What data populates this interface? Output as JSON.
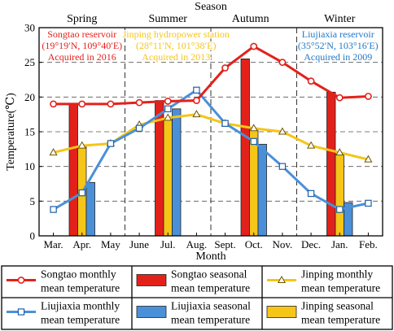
{
  "chart_data": {
    "type": "bar+line",
    "top_axis_label": "Season",
    "seasons": [
      "Spring",
      "Summer",
      "Autumn",
      "Winter"
    ],
    "xlabel": "Month",
    "ylabel": "Temperature(℃)",
    "ylim": [
      0,
      30
    ],
    "yticks": [
      0,
      5,
      10,
      15,
      20,
      25,
      30
    ],
    "categories": [
      "Mar.",
      "Apr.",
      "May",
      "June",
      "Jul.",
      "Aug.",
      "Sept.",
      "Oct.",
      "Nov.",
      "Dec.",
      "Jan.",
      "Feb."
    ],
    "line_series": [
      {
        "name": "Songtao monthly mean temperature",
        "color": "#e3211b",
        "marker": "circle",
        "values": [
          19.0,
          19.0,
          19.0,
          19.2,
          19.4,
          19.5,
          24.2,
          27.3,
          25.0,
          22.3,
          19.9,
          20.1
        ]
      },
      {
        "name": "Jinping monthly mean temperature",
        "color": "#f5c518",
        "marker": "triangle",
        "values": [
          12.0,
          13.0,
          13.3,
          16.0,
          17.0,
          17.5,
          16.2,
          15.5,
          15.0,
          13.0,
          12.0,
          11.0
        ]
      },
      {
        "name": "Liujiaxia monthly mean temperature",
        "color": "#4a90d9",
        "marker": "square",
        "values": [
          3.8,
          6.2,
          13.3,
          15.5,
          18.3,
          21.0,
          16.2,
          13.6,
          10.0,
          6.1,
          3.8,
          4.7
        ]
      }
    ],
    "bar_series": [
      {
        "name": "Songtao seasonal mean temperature",
        "color": "#e3211b",
        "bars": [
          {
            "month_index": 1,
            "value": 19.0
          },
          {
            "month_index": 4,
            "value": 19.5
          },
          {
            "month_index": 7,
            "value": 25.5
          },
          {
            "month_index": 10,
            "value": 20.7
          }
        ]
      },
      {
        "name": "Jinping seasonal mean temperature",
        "color": "#f5c518",
        "bars": [
          {
            "month_index": 1,
            "value": 12.9
          },
          {
            "month_index": 4,
            "value": 17.0
          },
          {
            "month_index": 7,
            "value": 15.4
          },
          {
            "month_index": 10,
            "value": 11.8
          }
        ]
      },
      {
        "name": "Liujiaxia seasonal mean temperature",
        "color": "#4a90d9",
        "bars": [
          {
            "month_index": 1,
            "value": 7.7
          },
          {
            "month_index": 4,
            "value": 18.3
          },
          {
            "month_index": 7,
            "value": 13.2
          },
          {
            "month_index": 10,
            "value": 4.8
          }
        ]
      }
    ],
    "annotations": [
      {
        "lines": [
          "Songtao reservoir",
          "(19°19′N, 109°40′E)",
          "Acquired in 2016"
        ],
        "color": "#e3211b"
      },
      {
        "lines": [
          "Jinping hydropower station",
          "(28°11′N, 101°38′E)",
          "Acquired in 2013"
        ],
        "color": "#f5c518"
      },
      {
        "lines": [
          "Liujiaxia reservoir",
          "(35°52′N, 103°16′E)",
          "Acquired in 2009"
        ],
        "color": "#1f78c8"
      }
    ],
    "legend": [
      [
        "Songtao monthly",
        "mean temperature"
      ],
      [
        "Songtao seasonal",
        "mean temperature"
      ],
      [
        "Jinping monthly",
        "mean temperature"
      ],
      [
        "Liujiaxia monthly",
        "mean temperature"
      ],
      [
        "Liujiaxia seasonal",
        "mean temperature"
      ],
      [
        "Jinping seasonal",
        "mean temperature"
      ]
    ],
    "grid": "dashed"
  }
}
